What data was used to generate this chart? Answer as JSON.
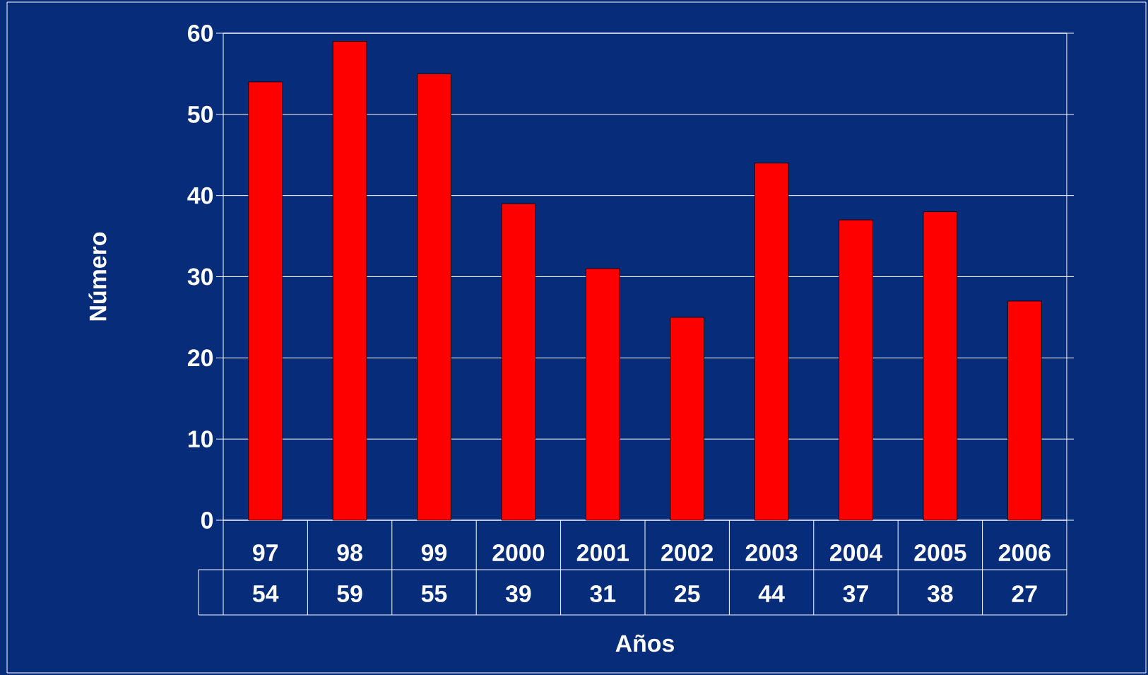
{
  "chart_data": {
    "type": "bar",
    "xlabel": "Años",
    "ylabel": "Número",
    "categories": [
      "97",
      "98",
      "99",
      "2000",
      "2001",
      "2002",
      "2003",
      "2004",
      "2005",
      "2006"
    ],
    "values": [
      54,
      59,
      55,
      39,
      31,
      25,
      44,
      37,
      38,
      27
    ],
    "color": "#ff0000",
    "ylim": [
      0,
      60
    ],
    "yticks": [
      0,
      10,
      20,
      30,
      40,
      50,
      60
    ],
    "grid": "y",
    "data_labels": true
  }
}
